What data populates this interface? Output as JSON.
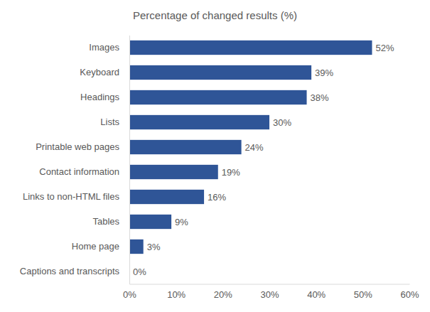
{
  "chart_data": {
    "type": "bar",
    "title": "Percentage of changed results (%)",
    "orientation": "horizontal",
    "categories": [
      "Images",
      "Keyboard",
      "Headings",
      "Lists",
      "Printable web pages",
      "Contact information",
      "Links to non-HTML files",
      "Tables",
      "Home page",
      "Captions and transcripts"
    ],
    "values": [
      52,
      39,
      38,
      30,
      24,
      19,
      16,
      9,
      3,
      0
    ],
    "value_labels": [
      "52%",
      "39%",
      "38%",
      "30%",
      "24%",
      "19%",
      "16%",
      "9%",
      "3%",
      "0%"
    ],
    "data_labels": true,
    "color": "#2f5597",
    "xlim": [
      0,
      60
    ],
    "xticks": [
      {
        "value": 0,
        "label": "0%"
      },
      {
        "value": 10,
        "label": "10%"
      },
      {
        "value": 20,
        "label": "20%"
      },
      {
        "value": 30,
        "label": "30%"
      },
      {
        "value": 40,
        "label": "40%"
      },
      {
        "value": 50,
        "label": "50%"
      },
      {
        "value": 60,
        "label": "60%"
      }
    ],
    "grid": false
  }
}
